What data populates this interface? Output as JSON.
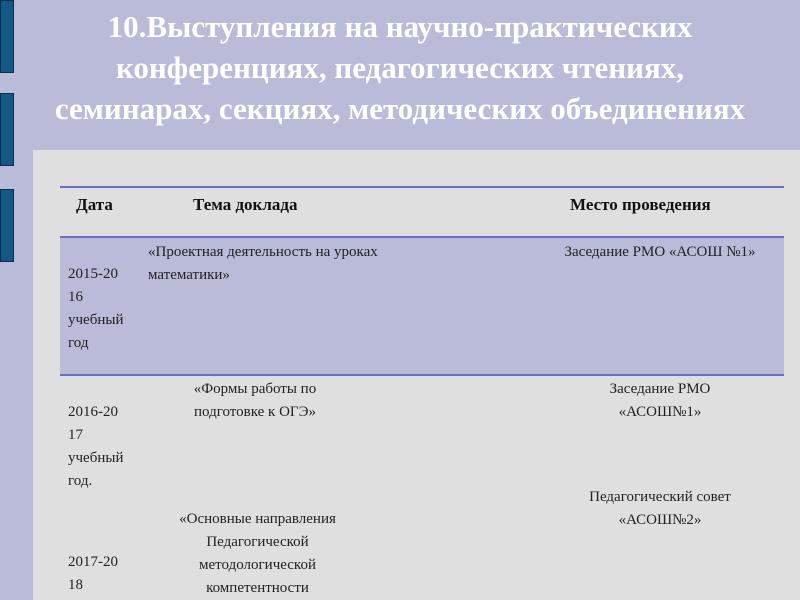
{
  "title": "10.Выступления на научно-практических конференциях, педагогических чтениях, семинарах, секциях, методических объединениях",
  "table": {
    "headers": [
      "Дата",
      "Тема доклада",
      "Место проведения"
    ],
    "rows": [
      {
        "date": "2015-20 16 учебный год",
        "topic": "«Проектная деятельность на уроках математики»",
        "place": "Заседание РМО «АСОШ №1»"
      },
      {
        "date": "2016-20 17 учебный год.",
        "topic": "«Формы работы по подготовке к ОГЭ»",
        "place": "Заседание РМО «АСОШ№1»"
      },
      {
        "date": "2017-20 18",
        "topic": "«Основные направления Педагогической методологической компетентности",
        "place": "Педагогический совет «АСОШ№2»"
      }
    ]
  },
  "colors": {
    "background": "#b9bbd9",
    "panel": "#dfdfdf",
    "highlight_row": "#babad9",
    "rule": "#6a6fcf",
    "decor": "#135988"
  }
}
